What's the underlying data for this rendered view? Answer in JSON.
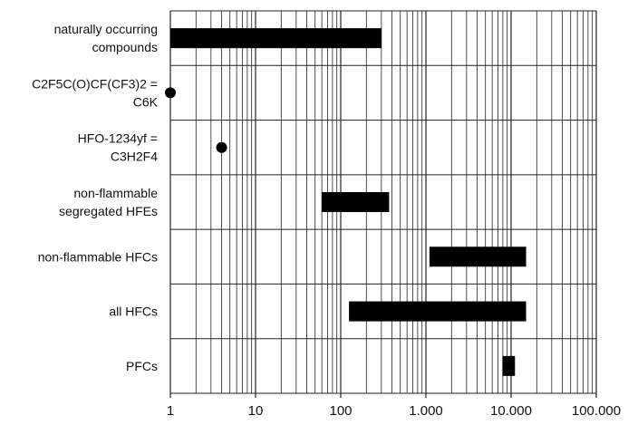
{
  "chart_data": {
    "type": "bar",
    "orientation": "horizontal",
    "x_scale": "log",
    "xlim": [
      1,
      100000
    ],
    "grid": true,
    "categories": [
      [
        "naturally occurring",
        "compounds"
      ],
      [
        "C2F5C(O)CF(CF3)2 =",
        "C6K"
      ],
      [
        "HFO-1234yf =",
        "C3H2F4"
      ],
      [
        "non-flammable",
        "segregated HFEs"
      ],
      [
        "non-flammable HFCs"
      ],
      [
        "all HFCs"
      ],
      [
        "PFCs"
      ]
    ],
    "ranges": [
      {
        "kind": "bar",
        "start": 1,
        "end": 300
      },
      {
        "kind": "point",
        "value": 1
      },
      {
        "kind": "point",
        "value": 4
      },
      {
        "kind": "bar",
        "start": 60,
        "end": 370
      },
      {
        "kind": "bar",
        "start": 1100,
        "end": 15000
      },
      {
        "kind": "bar",
        "start": 125,
        "end": 15000
      },
      {
        "kind": "bar",
        "start": 7900,
        "end": 11100
      }
    ],
    "x_ticks": [
      {
        "value": 1,
        "label": "1"
      },
      {
        "value": 10,
        "label": "10"
      },
      {
        "value": 100,
        "label": "100"
      },
      {
        "value": 1000,
        "label": "1.000"
      },
      {
        "value": 10000,
        "label": "10.000"
      },
      {
        "value": 100000,
        "label": "100.000"
      }
    ],
    "colors": {
      "mark": "#000000",
      "grid": "#222222",
      "text": "#111111"
    }
  }
}
